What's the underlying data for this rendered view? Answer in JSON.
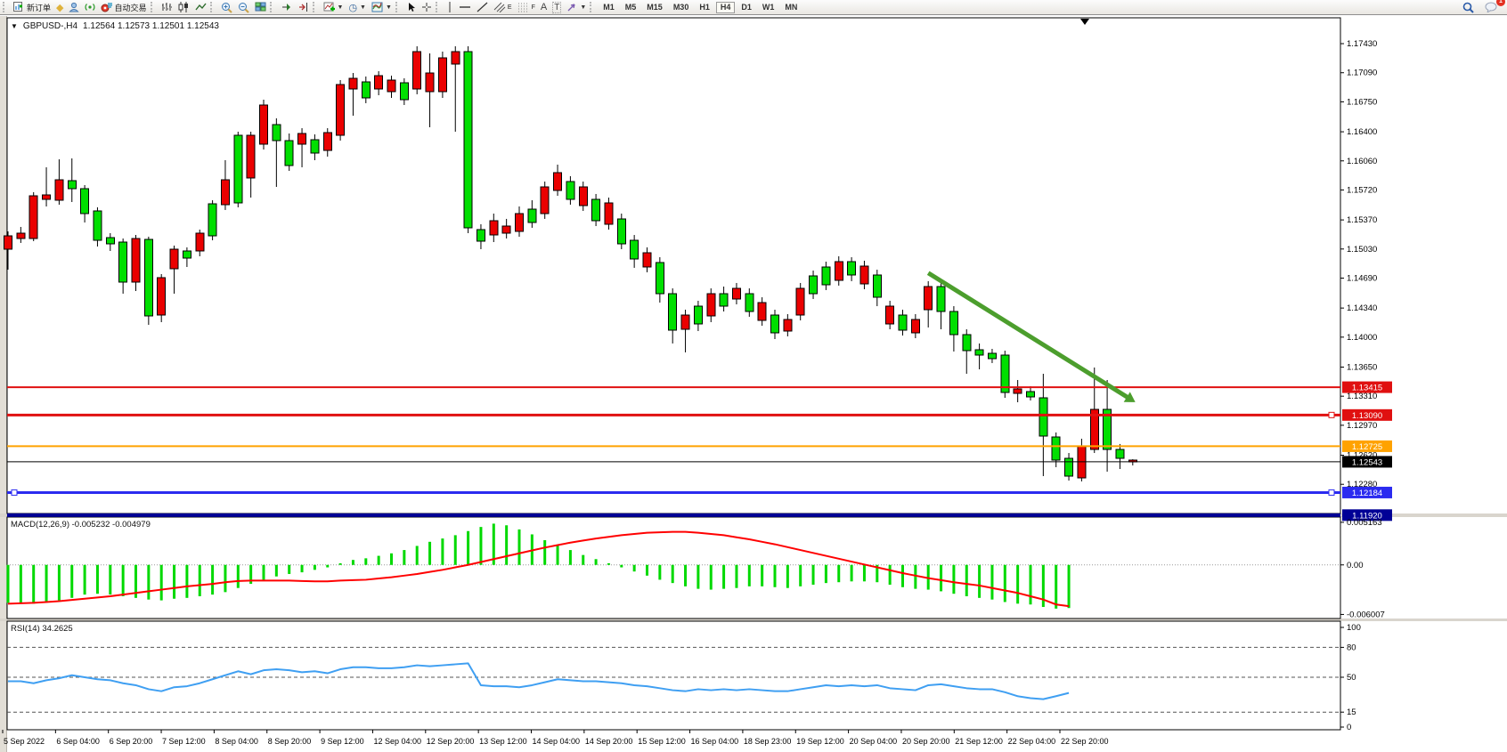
{
  "toolbar": {
    "new_order_label": "新订单",
    "auto_trading_label": "自动交易",
    "channel_label": "E",
    "fibo_label": "F",
    "text_label": "A",
    "label_label": "T",
    "timeframes": [
      "M1",
      "M5",
      "M15",
      "M30",
      "H1",
      "H4",
      "D1",
      "W1",
      "MN"
    ],
    "active_timeframe": "H4",
    "notification_count": "1"
  },
  "window": {
    "title_symbol": "GBPUSD-,H4",
    "title_ohlc": "1.12564 1.12573 1.12501 1.12543"
  },
  "colors": {
    "bull": "#00df00",
    "bear": "#ea0000",
    "outline": "#000000",
    "macd_hist": "#00d900",
    "macd_signal": "#ff0000",
    "rsi_line": "#3f9ff2",
    "arrow": "#4c9e2d",
    "tag_red": "#e01010",
    "tag_orange": "#ffa200",
    "tag_blue": "#2b2bf0",
    "tag_navy": "#000096",
    "tag_black": "#000000"
  },
  "chart_data": [
    {
      "type": "candlestick",
      "title": "GBPUSD-,H4",
      "ylim": [
        1.11939,
        1.17732
      ],
      "y_ticks": [
        "1.17430",
        "1.17090",
        "1.16750",
        "1.16400",
        "1.16060",
        "1.15720",
        "1.15370",
        "1.15030",
        "1.14690",
        "1.14340",
        "1.14000",
        "1.13650",
        "1.13310",
        "1.12970",
        "1.12620",
        "1.12280"
      ],
      "x_labels": [
        "5 Sep 2022",
        "6 Sep 04:00",
        "6 Sep 20:00",
        "7 Sep 12:00",
        "8 Sep 04:00",
        "8 Sep 20:00",
        "9 Sep 12:00",
        "12 Sep 04:00",
        "12 Sep 20:00",
        "13 Sep 12:00",
        "14 Sep 04:00",
        "14 Sep 20:00",
        "15 Sep 12:00",
        "16 Sep 04:00",
        "18 Sep 23:00",
        "19 Sep 12:00",
        "20 Sep 04:00",
        "20 Sep 20:00",
        "21 Sep 12:00",
        "22 Sep 04:00",
        "22 Sep 20:00"
      ],
      "candles": [
        [
          1.15184,
          1.15236,
          1.14789,
          1.15028
        ],
        [
          1.15215,
          1.15288,
          1.15101,
          1.15153
        ],
        [
          1.15652,
          1.15694,
          1.15122,
          1.15153
        ],
        [
          1.15662,
          1.15985,
          1.15527,
          1.1561
        ],
        [
          1.15839,
          1.16078,
          1.15548,
          1.156
        ],
        [
          1.15735,
          1.16089,
          1.15579,
          1.15829
        ],
        [
          1.15444,
          1.15777,
          1.1534,
          1.15735
        ],
        [
          1.15132,
          1.15517,
          1.15059,
          1.15475
        ],
        [
          1.1509,
          1.15215,
          1.15007,
          1.15163
        ],
        [
          1.14643,
          1.15153,
          1.14508,
          1.15111
        ],
        [
          1.15153,
          1.15194,
          1.14539,
          1.14643
        ],
        [
          1.14248,
          1.15174,
          1.14144,
          1.15142
        ],
        [
          1.14695,
          1.14737,
          1.14175,
          1.14258
        ],
        [
          1.15028,
          1.1507,
          1.14508,
          1.14799
        ],
        [
          1.14924,
          1.15049,
          1.1482,
          1.15007
        ],
        [
          1.15215,
          1.15257,
          1.14945,
          1.15007
        ],
        [
          1.15184,
          1.156,
          1.15132,
          1.15558
        ],
        [
          1.15839,
          1.16068,
          1.15486,
          1.15548
        ],
        [
          1.15569,
          1.16401,
          1.15517,
          1.16359
        ],
        [
          1.16359,
          1.16401,
          1.15631,
          1.1586
        ],
        [
          1.16713,
          1.16775,
          1.16193,
          1.16255
        ],
        [
          1.16297,
          1.16557,
          1.15756,
          1.16484
        ],
        [
          1.16006,
          1.1638,
          1.15943,
          1.16297
        ],
        [
          1.1638,
          1.16442,
          1.15985,
          1.16255
        ],
        [
          1.16151,
          1.1637,
          1.16068,
          1.16307
        ],
        [
          1.1639,
          1.16442,
          1.1611,
          1.16182
        ],
        [
          1.16952,
          1.17004,
          1.16297,
          1.16359
        ],
        [
          1.17025,
          1.17087,
          1.16588,
          1.169
        ],
        [
          1.16796,
          1.17046,
          1.16734,
          1.16983
        ],
        [
          1.17056,
          1.17108,
          1.16827,
          1.169
        ],
        [
          1.17004,
          1.17056,
          1.16796,
          1.16869
        ],
        [
          1.16775,
          1.17025,
          1.16713,
          1.16973
        ],
        [
          1.17337,
          1.17399,
          1.16838,
          1.169
        ],
        [
          1.17087,
          1.17316,
          1.16453,
          1.16869
        ],
        [
          1.17264,
          1.17337,
          1.16796,
          1.16869
        ],
        [
          1.17337,
          1.17399,
          1.16401,
          1.17191
        ],
        [
          1.15278,
          1.17399,
          1.15215,
          1.17337
        ],
        [
          1.15122,
          1.15319,
          1.15028,
          1.15257
        ],
        [
          1.15361,
          1.15444,
          1.15111,
          1.15194
        ],
        [
          1.15298,
          1.15382,
          1.15153,
          1.15215
        ],
        [
          1.15444,
          1.15527,
          1.15174,
          1.15236
        ],
        [
          1.1534,
          1.156,
          1.15278,
          1.15496
        ],
        [
          1.15756,
          1.15818,
          1.15382,
          1.15444
        ],
        [
          1.15922,
          1.16016,
          1.15652,
          1.15714
        ],
        [
          1.1561,
          1.15881,
          1.15548,
          1.15818
        ],
        [
          1.15756,
          1.15818,
          1.15475,
          1.15538
        ],
        [
          1.15361,
          1.15673,
          1.15298,
          1.1561
        ],
        [
          1.15569,
          1.15631,
          1.15257,
          1.15319
        ],
        [
          1.1509,
          1.15444,
          1.15028,
          1.15382
        ],
        [
          1.14914,
          1.15194,
          1.1481,
          1.15132
        ],
        [
          1.14986,
          1.15049,
          1.14758,
          1.1482
        ],
        [
          1.14508,
          1.14934,
          1.14404,
          1.14872
        ],
        [
          1.14082,
          1.1457,
          1.13926,
          1.14508
        ],
        [
          1.14258,
          1.14321,
          1.13822,
          1.14092
        ],
        [
          1.14154,
          1.14425,
          1.14071,
          1.14362
        ],
        [
          1.14508,
          1.1457,
          1.14175,
          1.14248
        ],
        [
          1.14362,
          1.14591,
          1.143,
          1.14508
        ],
        [
          1.1457,
          1.14633,
          1.14383,
          1.14446
        ],
        [
          1.143,
          1.1457,
          1.14238,
          1.14508
        ],
        [
          1.14404,
          1.14466,
          1.14133,
          1.14196
        ],
        [
          1.1405,
          1.14321,
          1.13978,
          1.14258
        ],
        [
          1.14206,
          1.14269,
          1.14009,
          1.14071
        ],
        [
          1.1457,
          1.14633,
          1.14196,
          1.14258
        ],
        [
          1.14508,
          1.14778,
          1.14446,
          1.14716
        ],
        [
          1.14612,
          1.14882,
          1.1455,
          1.1482
        ],
        [
          1.14882,
          1.14945,
          1.14602,
          1.14664
        ],
        [
          1.14726,
          1.14934,
          1.14654,
          1.14882
        ],
        [
          1.1483,
          1.14893,
          1.1456,
          1.14622
        ],
        [
          1.14466,
          1.14788,
          1.14362,
          1.14726
        ],
        [
          1.14362,
          1.14425,
          1.14092,
          1.14154
        ],
        [
          1.14082,
          1.14321,
          1.14019,
          1.14258
        ],
        [
          1.14206,
          1.14269,
          1.13988,
          1.1405
        ],
        [
          1.14591,
          1.14654,
          1.14113,
          1.14321
        ],
        [
          1.143,
          1.14654,
          1.14092,
          1.14591
        ],
        [
          1.1403,
          1.14362,
          1.13832,
          1.143
        ],
        [
          1.13842,
          1.14092,
          1.13572,
          1.1403
        ],
        [
          1.1379,
          1.13926,
          1.13624,
          1.13853
        ],
        [
          1.13749,
          1.13863,
          1.13697,
          1.13811
        ],
        [
          1.13354,
          1.13842,
          1.13291,
          1.1379
        ],
        [
          1.13395,
          1.13499,
          1.13239,
          1.13343
        ],
        [
          1.13302,
          1.13426,
          1.1326,
          1.13364
        ],
        [
          1.12844,
          1.13572,
          1.12376,
          1.13291
        ],
        [
          1.12563,
          1.12886,
          1.1248,
          1.12834
        ],
        [
          1.12376,
          1.12646,
          1.12324,
          1.12584
        ],
        [
          1.1273,
          1.12813,
          1.12314,
          1.12355
        ],
        [
          1.13156,
          1.13645,
          1.12646,
          1.12688
        ],
        [
          1.12688,
          1.13499,
          1.12428,
          1.13156
        ],
        [
          1.12584,
          1.12751,
          1.12459,
          1.12688
        ],
        [
          1.12564,
          1.12573,
          1.12501,
          1.12543
        ]
      ],
      "levels": [
        {
          "price": 1.13415,
          "label": "1.13415",
          "color": "#e01010",
          "width": 2,
          "handles": []
        },
        {
          "price": 1.1309,
          "label": "1.13090",
          "color": "#e01010",
          "width": 3,
          "handles": [
            "right"
          ]
        },
        {
          "price": 1.12725,
          "label": "1.12725",
          "color": "#ffa200",
          "width": 2,
          "handles": []
        },
        {
          "price": 1.12184,
          "label": "1.12184",
          "color": "#2b2bf0",
          "width": 3,
          "handles": [
            "left",
            "right"
          ]
        },
        {
          "price": 1.1192,
          "label": "1.11920",
          "color": "#000096",
          "width": 4,
          "handles": []
        }
      ],
      "bid_line": {
        "price": 1.12543,
        "label": "1.12543",
        "color": "#000000",
        "width": 1
      },
      "trend_arrow": {
        "from": {
          "i": 72,
          "price": 1.1475
        },
        "to": {
          "i": 88.2,
          "price": 1.1324
        },
        "color": "#4c9e2d",
        "width": 5
      }
    },
    {
      "type": "bar",
      "name": "MACD(12,26,9)",
      "label": "MACD(12,26,9) -0.005232 -0.004979",
      "last_values": [
        -0.005232,
        -0.004979
      ],
      "ylim": [
        -0.0065,
        0.0058
      ],
      "y_ticks": [
        {
          "v": 0.005163,
          "label": "0.005163"
        },
        {
          "v": 0,
          "label": "0.00"
        },
        {
          "v": -0.006007,
          "label": "-0.006007"
        }
      ],
      "values": [
        -0.0046,
        -0.0046,
        -0.0047,
        -0.0045,
        -0.0043,
        -0.004,
        -0.0036,
        -0.0035,
        -0.0036,
        -0.0038,
        -0.004,
        -0.0042,
        -0.0043,
        -0.0041,
        -0.004,
        -0.0038,
        -0.0036,
        -0.0033,
        -0.0028,
        -0.0023,
        -0.0018,
        -0.0014,
        -0.0011,
        -0.0009,
        -0.0006,
        -0.0003,
        0.0002,
        0.0006,
        0.0008,
        0.0011,
        0.0014,
        0.0018,
        0.0023,
        0.0028,
        0.0032,
        0.0036,
        0.0041,
        0.0046,
        0.005,
        0.0048,
        0.0043,
        0.0037,
        0.003,
        0.0024,
        0.0018,
        0.0012,
        0.0007,
        0.0002,
        -0.0003,
        -0.0008,
        -0.0013,
        -0.0018,
        -0.0022,
        -0.0026,
        -0.0029,
        -0.003,
        -0.0029,
        -0.0028,
        -0.0026,
        -0.0026,
        -0.0027,
        -0.0028,
        -0.0026,
        -0.0024,
        -0.0022,
        -0.0021,
        -0.002,
        -0.002,
        -0.0021,
        -0.0024,
        -0.0027,
        -0.0029,
        -0.003,
        -0.0032,
        -0.0035,
        -0.0038,
        -0.004,
        -0.0042,
        -0.0045,
        -0.0047,
        -0.0048,
        -0.0051,
        -0.0053,
        -0.00523
      ],
      "signal": [
        -0.0047,
        -0.00465,
        -0.0046,
        -0.0045,
        -0.0044,
        -0.00425,
        -0.0041,
        -0.00395,
        -0.0038,
        -0.0036,
        -0.0034,
        -0.0032,
        -0.003,
        -0.0028,
        -0.0026,
        -0.00245,
        -0.0023,
        -0.0021,
        -0.00195,
        -0.0019,
        -0.0019,
        -0.0019,
        -0.0019,
        -0.00195,
        -0.002,
        -0.002,
        -0.0019,
        -0.00185,
        -0.0018,
        -0.00165,
        -0.0015,
        -0.0013,
        -0.0011,
        -0.00085,
        -0.0006,
        -0.0003,
        0.0,
        0.00035,
        0.0007,
        0.00105,
        0.0014,
        0.00175,
        0.0021,
        0.0024,
        0.0027,
        0.00295,
        0.0032,
        0.0034,
        0.0036,
        0.00375,
        0.0039,
        0.00395,
        0.004,
        0.004,
        0.0039,
        0.00375,
        0.0036,
        0.00335,
        0.0031,
        0.0028,
        0.0025,
        0.00215,
        0.0018,
        0.00145,
        0.0011,
        0.00075,
        0.0004,
        5e-05,
        -0.0003,
        -0.00065,
        -0.001,
        -0.0013,
        -0.0016,
        -0.00185,
        -0.0021,
        -0.0023,
        -0.0025,
        -0.0028,
        -0.0031,
        -0.0034,
        -0.0038,
        -0.0042,
        -0.0048,
        -0.005
      ]
    },
    {
      "type": "line",
      "name": "RSI(14)",
      "label": "RSI(14) 34.2625",
      "last_value": 34.2625,
      "ylim": [
        0,
        100
      ],
      "y_ticks": [
        {
          "v": 100,
          "label": "100"
        },
        {
          "v": 80,
          "label": "80",
          "dashed": true
        },
        {
          "v": 50,
          "label": "50",
          "dashed": true
        },
        {
          "v": 15,
          "label": "15",
          "dashed": true
        },
        {
          "v": 0,
          "label": "0"
        }
      ],
      "values": [
        46,
        46,
        44,
        47,
        49,
        52,
        50,
        48,
        47,
        44,
        42,
        38,
        36,
        40,
        41,
        44,
        48,
        52,
        56,
        53,
        57,
        58,
        57,
        55,
        56,
        54,
        58,
        60,
        60,
        59,
        59,
        60,
        62,
        61,
        62,
        63,
        64,
        42,
        41,
        41,
        40,
        42,
        45,
        48,
        47,
        46,
        46,
        45,
        44,
        42,
        41,
        39,
        37,
        36,
        38,
        37,
        38,
        37,
        38,
        37,
        36,
        36,
        38,
        40,
        42,
        41,
        42,
        41,
        42,
        39,
        38,
        37,
        42,
        43,
        41,
        39,
        38,
        38,
        35,
        31,
        29,
        28,
        31,
        34.26
      ]
    }
  ]
}
